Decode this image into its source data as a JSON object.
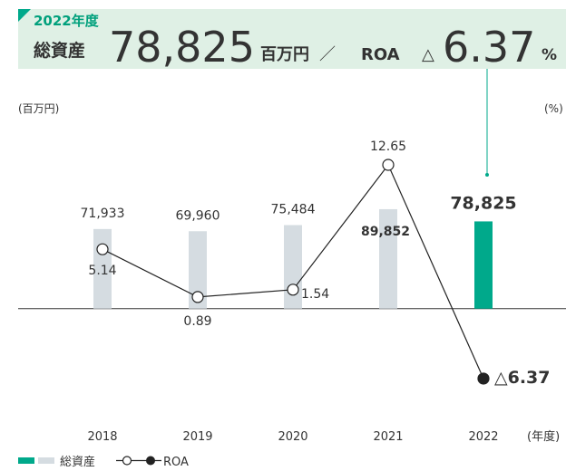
{
  "header": {
    "year": "2022年度",
    "label": "総資産",
    "value": "78,825",
    "unit": "百万円",
    "separator": "／",
    "roa_label": "ROA",
    "roa_sign": "△",
    "roa_value": "6.37",
    "roa_unit": "%"
  },
  "chart_data": {
    "type": "bar_line",
    "y_label": "(百万円)",
    "y2_label": "(%)",
    "x_label": "(年度)",
    "categories": [
      "2018",
      "2019",
      "2020",
      "2021",
      "2022"
    ],
    "series": [
      {
        "name": "総資産",
        "type": "bar",
        "color": "#d5dce1",
        "highlight_color": "#00a98b",
        "values": [
          71933,
          69960,
          75484,
          89852,
          78825
        ],
        "value_labels": [
          "71,933",
          "69,960",
          "75,484",
          "89,852",
          "78,825"
        ]
      },
      {
        "name": "ROA",
        "type": "line",
        "axis": "y2",
        "color": "#222222",
        "values": [
          5.14,
          0.89,
          1.54,
          12.65,
          -6.37
        ],
        "value_labels": [
          "5.14",
          "0.89",
          "1.54",
          "12.65",
          "△6.37"
        ]
      }
    ],
    "ylim": [
      -100000,
      170000
    ],
    "y2lim": [
      -10,
      16.6
    ]
  }
}
